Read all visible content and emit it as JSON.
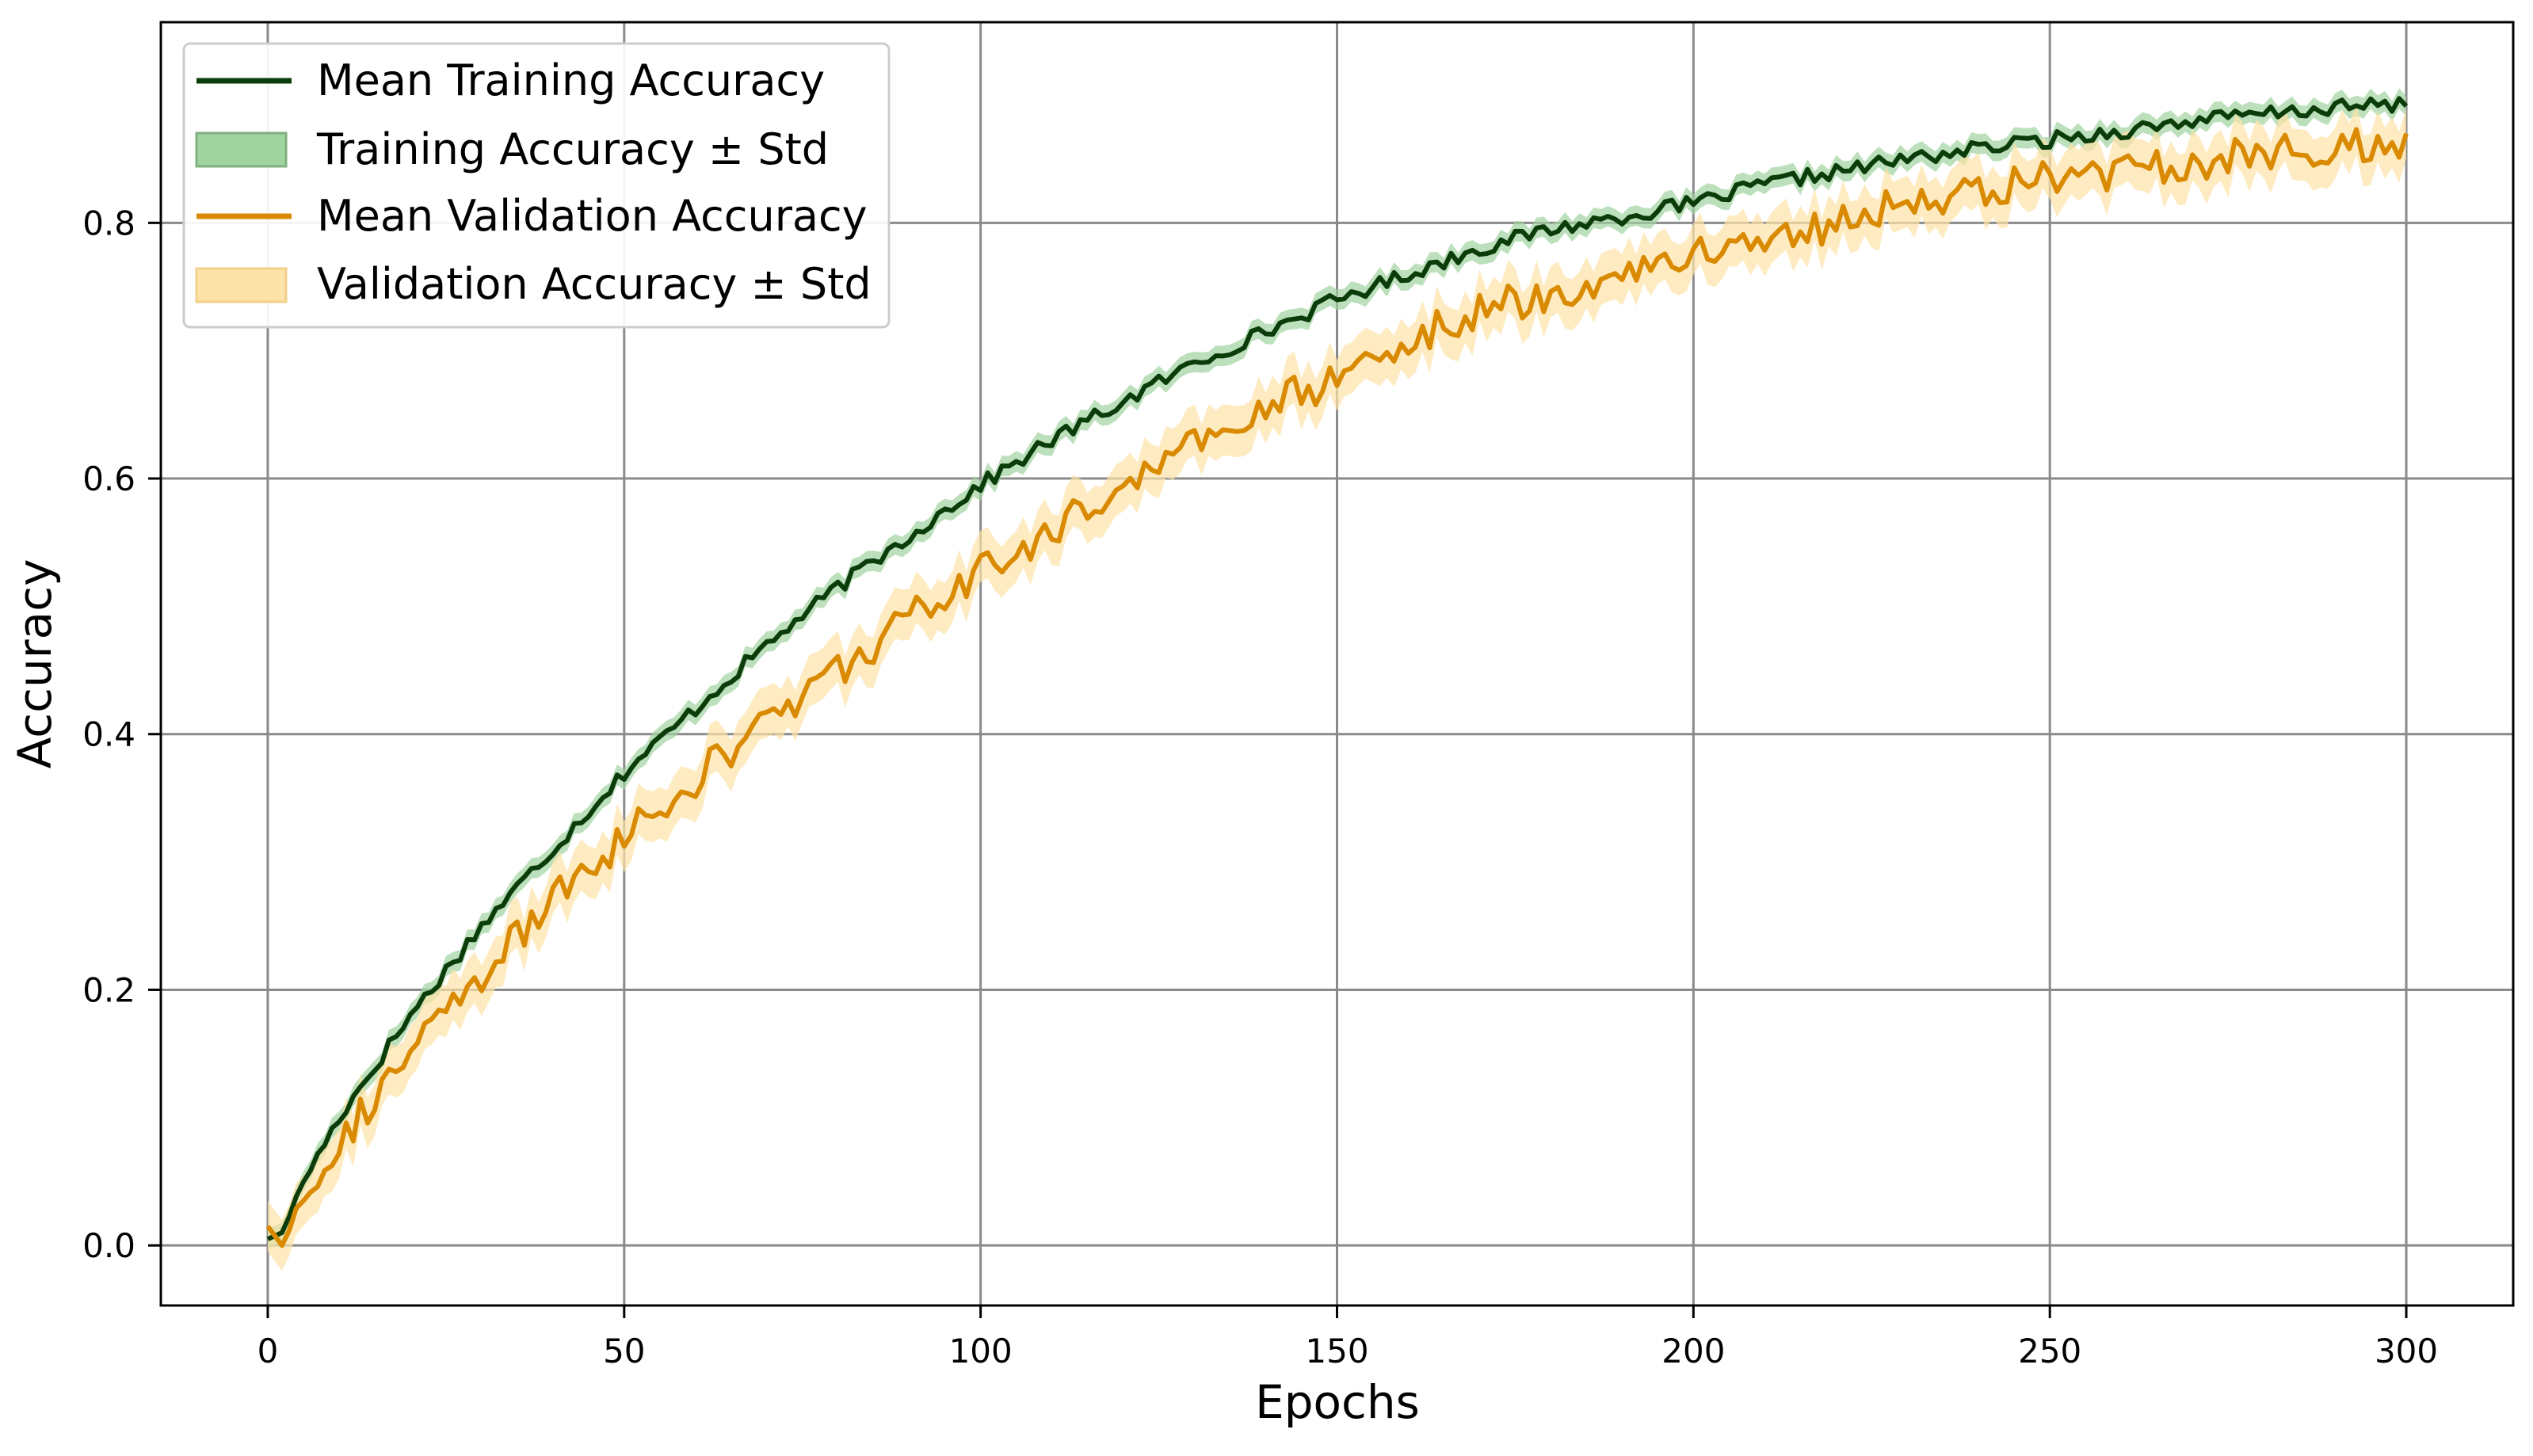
{
  "chart_data": {
    "type": "line",
    "title": "",
    "xlabel": "Epochs",
    "ylabel": "Accuracy",
    "xlim": [
      -15,
      315
    ],
    "ylim": [
      -0.047,
      0.957
    ],
    "xticks": [
      0,
      50,
      100,
      150,
      200,
      250,
      300
    ],
    "yticks": [
      0.0,
      0.2,
      0.4,
      0.6,
      0.8
    ],
    "xtick_labels": [
      "0",
      "50",
      "100",
      "150",
      "200",
      "250",
      "300"
    ],
    "ytick_labels": [
      "0.0",
      "0.2",
      "0.4",
      "0.6",
      "0.8"
    ],
    "grid": true,
    "legend_position": "top-left",
    "epochs": 300,
    "series": [
      {
        "name": "Mean Training Accuracy",
        "band_name": "Training Accuracy ± Std",
        "color": "#0b3d0b",
        "band_color": "#9fd39f",
        "x": [
          0,
          2,
          5,
          10,
          20,
          30,
          40,
          50,
          60,
          70,
          80,
          90,
          100,
          110,
          120,
          130,
          140,
          150,
          160,
          170,
          180,
          190,
          200,
          210,
          220,
          230,
          240,
          250,
          260,
          270,
          280,
          290,
          300
        ],
        "y": [
          0.005,
          0.01,
          0.05,
          0.1,
          0.18,
          0.25,
          0.31,
          0.37,
          0.42,
          0.47,
          0.515,
          0.555,
          0.595,
          0.63,
          0.66,
          0.69,
          0.715,
          0.74,
          0.76,
          0.78,
          0.795,
          0.805,
          0.815,
          0.83,
          0.84,
          0.85,
          0.858,
          0.865,
          0.872,
          0.88,
          0.885,
          0.89,
          0.893
        ],
        "std": 0.008
      },
      {
        "name": "Mean Validation Accuracy",
        "band_name": "Validation Accuracy ± Std",
        "color": "#d98a00",
        "band_color": "#fde3a7",
        "x": [
          0,
          2,
          5,
          10,
          20,
          30,
          40,
          50,
          60,
          70,
          80,
          90,
          100,
          110,
          120,
          130,
          140,
          150,
          160,
          170,
          180,
          190,
          200,
          210,
          220,
          230,
          240,
          250,
          260,
          270,
          280,
          290,
          300
        ],
        "y": [
          0.015,
          0.0,
          0.04,
          0.08,
          0.15,
          0.21,
          0.27,
          0.32,
          0.365,
          0.41,
          0.45,
          0.49,
          0.525,
          0.56,
          0.595,
          0.625,
          0.655,
          0.68,
          0.71,
          0.73,
          0.745,
          0.76,
          0.775,
          0.79,
          0.8,
          0.815,
          0.825,
          0.835,
          0.84,
          0.848,
          0.852,
          0.858,
          0.863
        ],
        "std": 0.02
      }
    ]
  }
}
